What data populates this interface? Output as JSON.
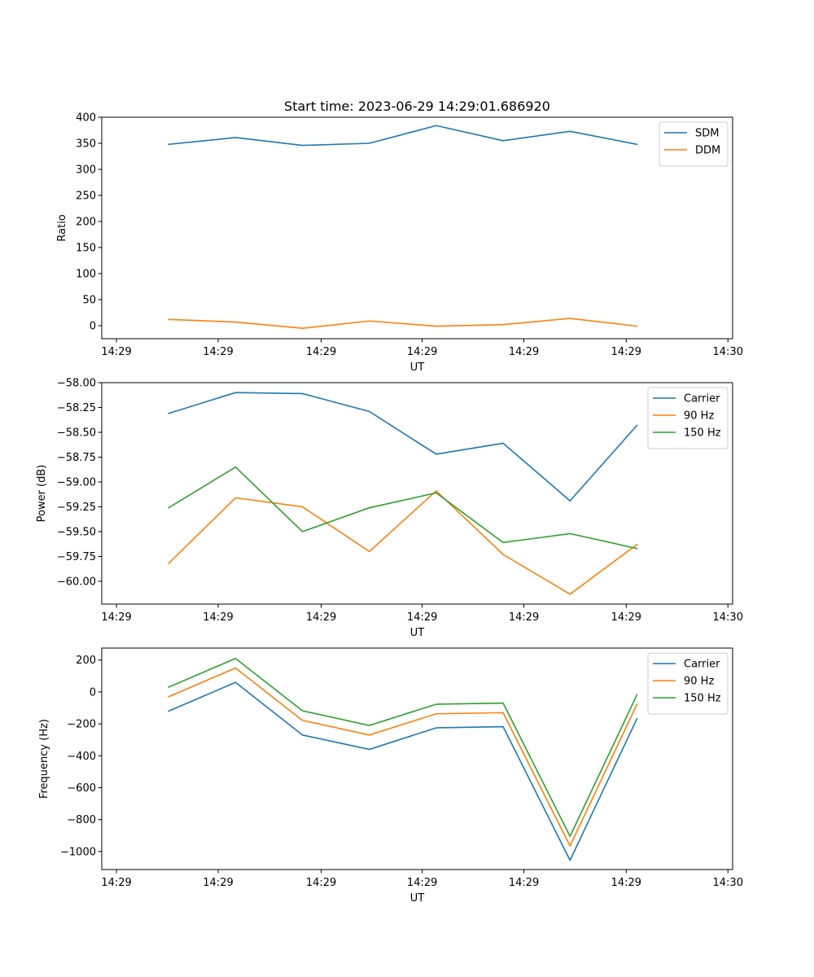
{
  "chart_data": [
    {
      "type": "line",
      "title": "Start time: 2023-06-29 14:29:01.686920",
      "xlabel": "UT",
      "ylabel": "Ratio",
      "x_tick_labels": [
        "14:29",
        "14:29",
        "14:29",
        "14:29",
        "14:29",
        "14:29",
        "14:30"
      ],
      "y_tick_labels": [
        "0",
        "50",
        "100",
        "150",
        "200",
        "250",
        "300",
        "350",
        "400"
      ],
      "y_ticks": [
        0,
        50,
        100,
        150,
        200,
        250,
        300,
        350,
        400
      ],
      "ylim": [
        -25,
        400
      ],
      "x": [
        1,
        2,
        3,
        4,
        5,
        6,
        7,
        8
      ],
      "xlim": [
        0,
        9.43
      ],
      "legend_position": "top-right",
      "grid": false,
      "series": [
        {
          "name": "SDM",
          "color": "#1f77b4",
          "values": [
            348,
            361,
            346,
            350,
            384,
            355,
            373,
            348
          ]
        },
        {
          "name": "DDM",
          "color": "#ff7f0e",
          "values": [
            12,
            7,
            -5,
            9,
            -1,
            2,
            14,
            -1
          ]
        }
      ]
    },
    {
      "type": "line",
      "title": "",
      "xlabel": "UT",
      "ylabel": "Power (dB)",
      "x_tick_labels": [
        "14:29",
        "14:29",
        "14:29",
        "14:29",
        "14:29",
        "14:29",
        "14:30"
      ],
      "y_tick_labels": [
        "−60.00",
        "−59.75",
        "−59.50",
        "−59.25",
        "−59.00",
        "−58.75",
        "−58.50",
        "−58.25",
        "−58.00"
      ],
      "y_ticks": [
        -60.0,
        -59.75,
        -59.5,
        -59.25,
        -59.0,
        -58.75,
        -58.5,
        -58.25,
        -58.0
      ],
      "ylim": [
        -60.23,
        -58.0
      ],
      "x": [
        1,
        2,
        3,
        4,
        5,
        6,
        7,
        8
      ],
      "xlim": [
        0,
        9.43
      ],
      "legend_position": "top-right",
      "grid": false,
      "series": [
        {
          "name": "Carrier",
          "color": "#1f77b4",
          "values": [
            -58.31,
            -58.1,
            -58.11,
            -58.29,
            -58.72,
            -58.61,
            -59.19,
            -58.43
          ]
        },
        {
          "name": "90 Hz",
          "color": "#ff7f0e",
          "values": [
            -59.82,
            -59.16,
            -59.25,
            -59.7,
            -59.09,
            -59.73,
            -60.13,
            -59.63
          ]
        },
        {
          "name": "150 Hz",
          "color": "#2ca02c",
          "values": [
            -59.26,
            -58.85,
            -59.5,
            -59.26,
            -59.11,
            -59.61,
            -59.52,
            -59.67
          ]
        }
      ]
    },
    {
      "type": "line",
      "title": "",
      "xlabel": "UT",
      "ylabel": "Frequency (Hz)",
      "x_tick_labels": [
        "14:29",
        "14:29",
        "14:29",
        "14:29",
        "14:29",
        "14:29",
        "14:30"
      ],
      "y_tick_labels": [
        "−1000",
        "−800",
        "−600",
        "−400",
        "−200",
        "0",
        "200"
      ],
      "y_ticks": [
        -1000,
        -800,
        -600,
        -400,
        -200,
        0,
        200
      ],
      "ylim": [
        -1113,
        275
      ],
      "x": [
        1,
        2,
        3,
        4,
        5,
        6,
        7,
        8
      ],
      "xlim": [
        0,
        9.43
      ],
      "legend_position": "top-right",
      "grid": false,
      "series": [
        {
          "name": "Carrier",
          "color": "#1f77b4",
          "values": [
            -120,
            60,
            -270,
            -360,
            -225,
            -218,
            -1055,
            -168
          ]
        },
        {
          "name": "90 Hz",
          "color": "#ff7f0e",
          "values": [
            -30,
            150,
            -178,
            -270,
            -137,
            -130,
            -965,
            -78
          ]
        },
        {
          "name": "150 Hz",
          "color": "#2ca02c",
          "values": [
            30,
            210,
            -118,
            -210,
            -77,
            -70,
            -905,
            -18
          ]
        }
      ]
    }
  ]
}
